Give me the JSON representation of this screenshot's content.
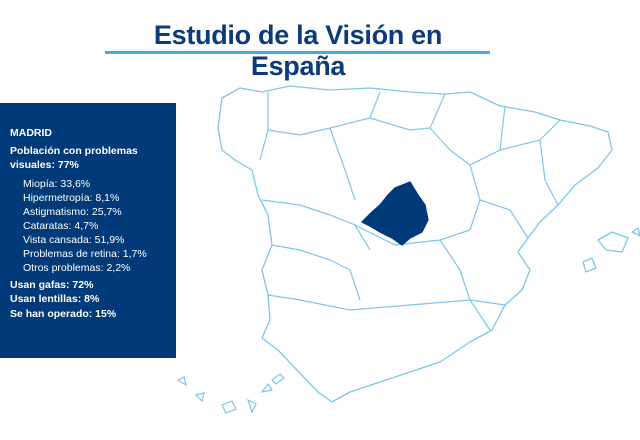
{
  "title": "Estudio de la Visión en España",
  "colors": {
    "primary": "#003a78",
    "accent": "#4aa8dc",
    "map_stroke": "#7cc6ea"
  },
  "highlighted_region": "Madrid",
  "panel": {
    "region": "MADRID",
    "population_line": "Población con problemas visuales: 77%",
    "problems": [
      "Miopía: 33,6%",
      "Hipermetropía: 8,1%",
      "Astigmatismo: 25,7%",
      "Cataratas: 4,7%",
      "Vista cansada: 51,9%",
      "Problemas de retina: 1,7%",
      "Otros problemas: 2,2%"
    ],
    "stats": [
      "Usan gafas: 72%",
      "Usan lentillas: 8%",
      "Se han operado: 15%"
    ]
  }
}
